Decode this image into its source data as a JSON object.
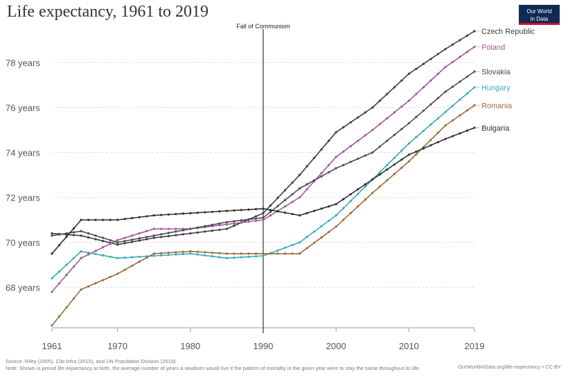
{
  "header": {
    "title": "Life expectancy, 1961 to 2019",
    "logo_line1": "Our World",
    "logo_line2": "in Data"
  },
  "footer": {
    "source": "Source: Riley (2005), Clio Infra (2015), and UN Population Division (2019)",
    "credit": "OurWorldInData.org/life-expectancy • CC BY",
    "note": "Note: Shown is period life expectancy at birth, the average number of years a newborn would live if the pattern of mortality in the given year were to stay the same throughout its life."
  },
  "chart_data": {
    "type": "line",
    "title": "Life expectancy, 1961 to 2019",
    "xlim": [
      1961,
      2019
    ],
    "ylim": [
      66.2,
      79.8
    ],
    "x_ticks": [
      1961,
      1970,
      1980,
      1990,
      2000,
      2010,
      2019
    ],
    "y_ticks": [
      {
        "value": 68,
        "label": "68 years"
      },
      {
        "value": 70,
        "label": "70 years"
      },
      {
        "value": 72,
        "label": "72 years"
      },
      {
        "value": 74,
        "label": "74 years"
      },
      {
        "value": 76,
        "label": "76 years"
      },
      {
        "value": 78,
        "label": "78 years"
      }
    ],
    "grid": true,
    "annotation": {
      "x": 1990,
      "label": "Fall of Communism"
    },
    "series": [
      {
        "name": "Czech Republic",
        "color": "#3b3b3b",
        "points": [
          [
            1961,
            70.4
          ],
          [
            1965,
            70.3
          ],
          [
            1970,
            69.9
          ],
          [
            1975,
            70.2
          ],
          [
            1980,
            70.4
          ],
          [
            1985,
            70.6
          ],
          [
            1990,
            71.3
          ],
          [
            1995,
            73.0
          ],
          [
            2000,
            74.9
          ],
          [
            2005,
            76.0
          ],
          [
            2010,
            77.5
          ],
          [
            2015,
            78.6
          ],
          [
            2019,
            79.4
          ]
        ]
      },
      {
        "name": "Poland",
        "color": "#a2559c",
        "points": [
          [
            1961,
            67.8
          ],
          [
            1965,
            69.3
          ],
          [
            1970,
            70.1
          ],
          [
            1975,
            70.6
          ],
          [
            1980,
            70.6
          ],
          [
            1985,
            70.8
          ],
          [
            1990,
            71.0
          ],
          [
            1995,
            72.0
          ],
          [
            2000,
            73.8
          ],
          [
            2005,
            75.0
          ],
          [
            2010,
            76.3
          ],
          [
            2015,
            77.8
          ],
          [
            2019,
            78.7
          ]
        ]
      },
      {
        "name": "Slovakia",
        "color": "#4a4a4a",
        "points": [
          [
            1961,
            70.3
          ],
          [
            1965,
            70.5
          ],
          [
            1970,
            70.0
          ],
          [
            1975,
            70.3
          ],
          [
            1980,
            70.6
          ],
          [
            1985,
            70.9
          ],
          [
            1990,
            71.1
          ],
          [
            1995,
            72.4
          ],
          [
            2000,
            73.3
          ],
          [
            2005,
            74.0
          ],
          [
            2010,
            75.3
          ],
          [
            2015,
            76.7
          ],
          [
            2019,
            77.6
          ]
        ]
      },
      {
        "name": "Hungary",
        "color": "#38aaba",
        "points": [
          [
            1961,
            68.4
          ],
          [
            1965,
            69.6
          ],
          [
            1970,
            69.3
          ],
          [
            1975,
            69.4
          ],
          [
            1980,
            69.5
          ],
          [
            1985,
            69.3
          ],
          [
            1990,
            69.4
          ],
          [
            1995,
            70.0
          ],
          [
            2000,
            71.2
          ],
          [
            2005,
            72.8
          ],
          [
            2010,
            74.4
          ],
          [
            2015,
            75.8
          ],
          [
            2019,
            76.9
          ]
        ]
      },
      {
        "name": "Romania",
        "color": "#996d39",
        "points": [
          [
            1961,
            66.3
          ],
          [
            1965,
            67.9
          ],
          [
            1970,
            68.6
          ],
          [
            1975,
            69.5
          ],
          [
            1980,
            69.6
          ],
          [
            1985,
            69.5
          ],
          [
            1990,
            69.5
          ],
          [
            1995,
            69.5
          ],
          [
            2000,
            70.7
          ],
          [
            2005,
            72.2
          ],
          [
            2010,
            73.6
          ],
          [
            2015,
            75.2
          ],
          [
            2019,
            76.1
          ]
        ]
      },
      {
        "name": "Bulgaria",
        "color": "#2e2e2e",
        "points": [
          [
            1961,
            69.5
          ],
          [
            1965,
            71.0
          ],
          [
            1970,
            71.0
          ],
          [
            1975,
            71.2
          ],
          [
            1980,
            71.3
          ],
          [
            1985,
            71.4
          ],
          [
            1990,
            71.5
          ],
          [
            1995,
            71.2
          ],
          [
            2000,
            71.7
          ],
          [
            2005,
            72.8
          ],
          [
            2010,
            73.9
          ],
          [
            2015,
            74.6
          ],
          [
            2019,
            75.1
          ]
        ]
      }
    ]
  }
}
